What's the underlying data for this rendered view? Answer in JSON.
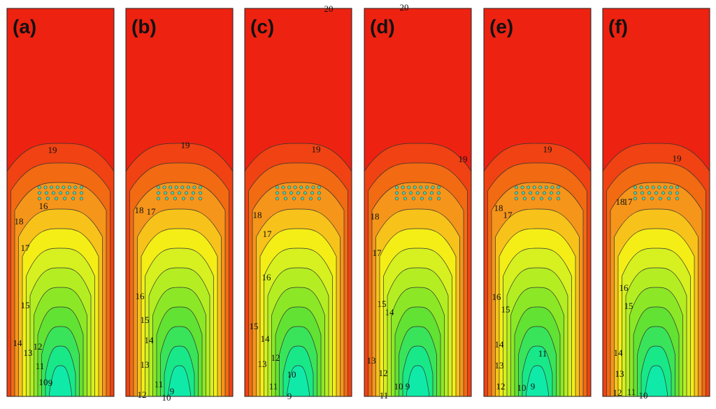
{
  "panels": [
    {
      "label": "(a)",
      "contour_labels": [
        19,
        16,
        18,
        17,
        15,
        14,
        13,
        12,
        11,
        10,
        9
      ]
    },
    {
      "label": "(b)",
      "contour_labels": [
        19,
        18,
        17,
        16,
        15,
        14,
        13,
        11,
        12,
        10,
        9
      ]
    },
    {
      "label": "(c)",
      "contour_labels": [
        20,
        19,
        18,
        17,
        16,
        15,
        14,
        12,
        13,
        10,
        11,
        9
      ]
    },
    {
      "label": "(d)",
      "contour_labels": [
        20,
        19,
        18,
        17,
        15,
        14,
        13,
        12,
        10,
        9,
        11
      ]
    },
    {
      "label": "(e)",
      "contour_labels": [
        19,
        18,
        17,
        16,
        15,
        14,
        11,
        13,
        12,
        10,
        9
      ]
    },
    {
      "label": "(f)",
      "contour_labels": [
        19,
        18,
        17,
        16,
        15,
        14,
        13,
        12,
        11,
        10
      ]
    }
  ]
}
